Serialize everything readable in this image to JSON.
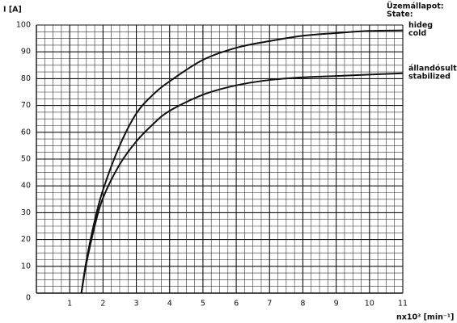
{
  "chart_data": {
    "type": "line",
    "ylabel": "I [A]",
    "xlabel": "nx10³ [min⁻¹]",
    "state_label": "Üzemállapot:",
    "state_label_en": "State:",
    "xlim": [
      0,
      11
    ],
    "ylim": [
      0,
      100
    ],
    "xticks": [
      1,
      2,
      3,
      4,
      5,
      6,
      7,
      8,
      9,
      10,
      11
    ],
    "yticks": [
      0,
      10,
      20,
      30,
      40,
      50,
      60,
      70,
      80,
      90,
      100
    ],
    "grid": true,
    "minor_grid": 4,
    "x": [
      1.35,
      1.5,
      1.75,
      2,
      2.5,
      3,
      3.5,
      4,
      5,
      6,
      7,
      8,
      9,
      10,
      11
    ],
    "series": [
      {
        "name": "hideg",
        "name_en": "cold",
        "color": "#111111",
        "values": [
          0,
          12,
          27,
          38.5,
          55,
          67,
          74,
          79,
          87,
          91.5,
          94,
          96,
          97,
          97.8,
          98
        ]
      },
      {
        "name": "állandósult",
        "name_en": "stabilized",
        "color": "#111111",
        "values": [
          0,
          11,
          25,
          35.5,
          48,
          56.6,
          63,
          68,
          74,
          77.5,
          79.5,
          80.5,
          81,
          81.5,
          82
        ]
      }
    ]
  }
}
